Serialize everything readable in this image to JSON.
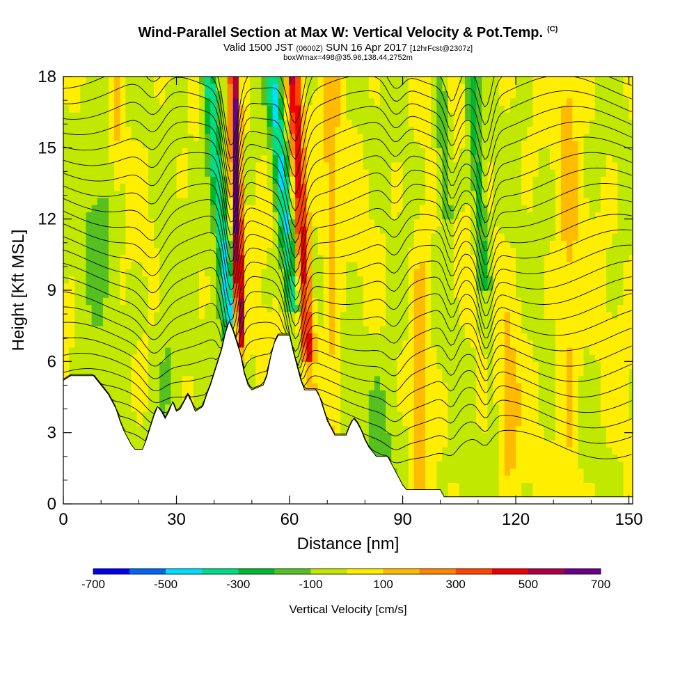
{
  "title": {
    "main": "Wind-Parallel Section at Max W: Vertical Velocity & Pot.Temp.",
    "mark": "(C)",
    "valid_a": "Valid 1500 JST",
    "valid_z": "(0600Z)",
    "valid_b": "SUN 16 Apr 2017",
    "fcst": "[12hrFcst@2307z]",
    "box": "boxWmax=498@35.96,138.44,2752m"
  },
  "chart_data": {
    "type": "heatmap",
    "xlabel": "Distance [nm]",
    "ylabel": "Height [Kft MSL]",
    "xlim": [
      0,
      151
    ],
    "ylim": [
      0,
      18
    ],
    "x_ticks": [
      0,
      30,
      60,
      90,
      120,
      150
    ],
    "y_ticks": [
      0,
      3,
      6,
      9,
      12,
      15,
      18
    ],
    "colorbar": {
      "label": "Vertical Velocity [cm/s]",
      "tick_labels": [
        "-700",
        "-500",
        "-300",
        "-100",
        "100",
        "300",
        "500",
        "700"
      ],
      "levels": [
        -700,
        -600,
        -500,
        -400,
        -300,
        -200,
        -100,
        0,
        100,
        200,
        300,
        400,
        500,
        600,
        700
      ],
      "colors": [
        "#0000ee",
        "#0066ee",
        "#00ddff",
        "#00dd88",
        "#00b830",
        "#55c020",
        "#c0e800",
        "#ffee00",
        "#ffbb00",
        "#ff8800",
        "#ff4400",
        "#ee0000",
        "#aa0044",
        "#660088"
      ]
    },
    "terrain_kft": [
      [
        0,
        5.2
      ],
      [
        2,
        5.4
      ],
      [
        8,
        5.4
      ],
      [
        10,
        5.0
      ],
      [
        12,
        4.6
      ],
      [
        13,
        4.3
      ],
      [
        14,
        4.0
      ],
      [
        15,
        3.5
      ],
      [
        16,
        3.1
      ],
      [
        17,
        2.8
      ],
      [
        18,
        2.5
      ],
      [
        19,
        2.3
      ],
      [
        21,
        2.3
      ],
      [
        22,
        2.7
      ],
      [
        23,
        3.2
      ],
      [
        24,
        3.7
      ],
      [
        25,
        4.1
      ],
      [
        26,
        3.9
      ],
      [
        27,
        3.6
      ],
      [
        28,
        3.9
      ],
      [
        29,
        4.3
      ],
      [
        30,
        3.9
      ],
      [
        31,
        4.0
      ],
      [
        32,
        4.3
      ],
      [
        33,
        4.6
      ],
      [
        34,
        4.3
      ],
      [
        35,
        3.9
      ],
      [
        37,
        4.1
      ],
      [
        38,
        4.6
      ],
      [
        39,
        5.0
      ],
      [
        40,
        5.5
      ],
      [
        41,
        6.0
      ],
      [
        42,
        6.5
      ],
      [
        43,
        7.2
      ],
      [
        44,
        7.7
      ],
      [
        45,
        7.3
      ],
      [
        46,
        6.8
      ],
      [
        47,
        6.3
      ],
      [
        48,
        5.5
      ],
      [
        49,
        5.0
      ],
      [
        50,
        4.8
      ],
      [
        53,
        5.0
      ],
      [
        54,
        5.4
      ],
      [
        55,
        6.2
      ],
      [
        56,
        6.8
      ],
      [
        57,
        7.1
      ],
      [
        60,
        7.1
      ],
      [
        61,
        6.4
      ],
      [
        62,
        5.8
      ],
      [
        63,
        5.2
      ],
      [
        64,
        4.8
      ],
      [
        67,
        4.8
      ],
      [
        68,
        4.5
      ],
      [
        69,
        4.0
      ],
      [
        70,
        3.5
      ],
      [
        71,
        3.2
      ],
      [
        72,
        2.9
      ],
      [
        75,
        2.9
      ],
      [
        76,
        3.3
      ],
      [
        77,
        3.6
      ],
      [
        78,
        3.4
      ],
      [
        79,
        3.1
      ],
      [
        80,
        2.7
      ],
      [
        81,
        2.4
      ],
      [
        82,
        2.2
      ],
      [
        83,
        2.0
      ],
      [
        86,
        2.0
      ],
      [
        87,
        1.7
      ],
      [
        88,
        1.4
      ],
      [
        89,
        1.1
      ],
      [
        90,
        0.8
      ],
      [
        91,
        0.6
      ],
      [
        100,
        0.6
      ],
      [
        101,
        0.3
      ],
      [
        151,
        0.3
      ]
    ],
    "w_max_cm_s": 498,
    "updraft_cores": [
      {
        "x": 46,
        "w": 650
      },
      {
        "x": 63,
        "w": 450
      },
      {
        "x": 95,
        "w": 200
      }
    ],
    "downdraft_cores": [
      {
        "x": 43,
        "w": -400
      },
      {
        "x": 60,
        "w": -380
      },
      {
        "x": 112,
        "w": -250
      }
    ]
  }
}
